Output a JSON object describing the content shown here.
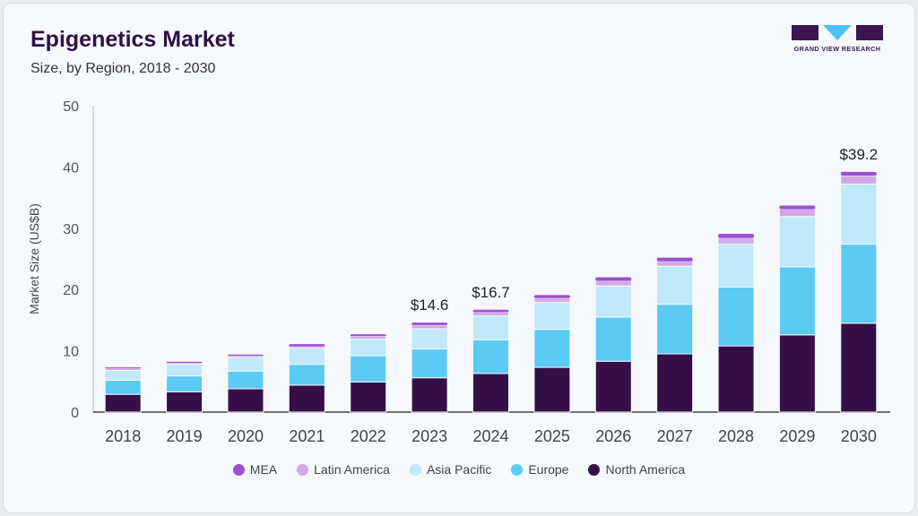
{
  "header": {
    "title": "Epigenetics Market",
    "subtitle": "Size, by Region, 2018 - 2030"
  },
  "logo": {
    "text": "GRAND VIEW RESEARCH"
  },
  "chart_data": {
    "type": "bar",
    "stacked": true,
    "title": "Epigenetics Market",
    "subtitle": "Size, by Region, 2018 - 2030",
    "xlabel": "",
    "ylabel": "Market Size (US$B)",
    "ylim": [
      0,
      50
    ],
    "yticks": [
      0,
      10,
      20,
      30,
      40,
      50
    ],
    "grid": false,
    "legend_position": "bottom",
    "categories": [
      "2018",
      "2019",
      "2020",
      "2021",
      "2022",
      "2023",
      "2024",
      "2025",
      "2026",
      "2027",
      "2028",
      "2029",
      "2030"
    ],
    "series": [
      {
        "name": "North America",
        "color": "#360f48",
        "values": [
          2.9,
          3.3,
          3.8,
          4.4,
          4.9,
          5.6,
          6.3,
          7.3,
          8.3,
          9.5,
          10.8,
          12.6,
          14.5
        ]
      },
      {
        "name": "Europe",
        "color": "#5bcaf4",
        "values": [
          2.3,
          2.6,
          2.9,
          3.4,
          4.3,
          4.7,
          5.5,
          6.2,
          7.2,
          8.1,
          9.6,
          11.1,
          12.9
        ]
      },
      {
        "name": "Asia Pacific",
        "color": "#bfe8f8",
        "values": [
          1.6,
          1.9,
          2.2,
          2.6,
          2.7,
          3.3,
          3.9,
          4.4,
          5.1,
          6.2,
          7.0,
          8.2,
          9.8
        ]
      },
      {
        "name": "Latin America",
        "color": "#d3a8e6",
        "values": [
          0.3,
          0.2,
          0.3,
          0.3,
          0.5,
          0.6,
          0.6,
          0.7,
          0.8,
          0.8,
          1.0,
          1.2,
          1.4
        ]
      },
      {
        "name": "MEA",
        "color": "#9c4fd2",
        "values": [
          0.2,
          0.2,
          0.2,
          0.4,
          0.3,
          0.4,
          0.4,
          0.5,
          0.6,
          0.6,
          0.7,
          0.6,
          0.6
        ]
      }
    ],
    "annotations": [
      {
        "category": "2023",
        "label": "$14.6"
      },
      {
        "category": "2024",
        "label": "$16.7"
      },
      {
        "category": "2030",
        "label": "$39.2"
      }
    ],
    "legend_order": [
      "MEA",
      "Latin America",
      "Asia Pacific",
      "Europe",
      "North America"
    ]
  }
}
